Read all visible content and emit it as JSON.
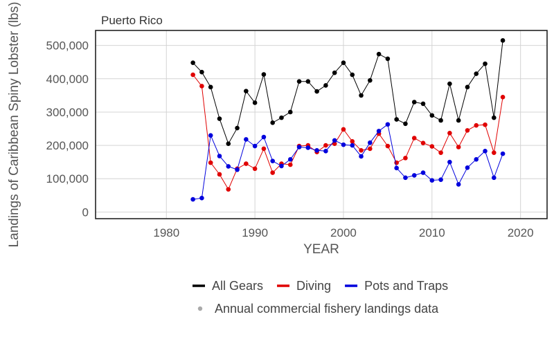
{
  "chart_data": {
    "type": "line",
    "title": "Puerto Rico",
    "xlabel": "YEAR",
    "ylabel": "Landings of Caribbean Spiny Lobster (lbs)",
    "xlim": [
      1972,
      2023
    ],
    "ylim": [
      -20000,
      545000
    ],
    "x_ticks": [
      1980,
      1990,
      2000,
      2010,
      2020
    ],
    "y_ticks": [
      0,
      100000,
      200000,
      300000,
      400000,
      500000
    ],
    "y_tick_labels": [
      "0",
      "100,000",
      "200,000",
      "300,000",
      "400,000",
      "500,000"
    ],
    "grid": true,
    "legend_position": "bottom",
    "x": [
      1983,
      1984,
      1985,
      1986,
      1987,
      1988,
      1989,
      1990,
      1991,
      1992,
      1993,
      1994,
      1995,
      1996,
      1997,
      1998,
      1999,
      2000,
      2001,
      2002,
      2003,
      2004,
      2005,
      2006,
      2007,
      2008,
      2009,
      2010,
      2011,
      2012,
      2013,
      2014,
      2015,
      2016,
      2017,
      2018
    ],
    "series": [
      {
        "name": "All Gears",
        "color": "#000000",
        "values": [
          448000,
          420000,
          375000,
          280000,
          205000,
          252000,
          363000,
          328000,
          413000,
          268000,
          283000,
          300000,
          392000,
          392000,
          362000,
          380000,
          418000,
          448000,
          412000,
          350000,
          395000,
          474000,
          460000,
          278000,
          265000,
          330000,
          325000,
          290000,
          275000,
          385000,
          275000,
          375000,
          415000,
          445000,
          283000,
          515000
        ]
      },
      {
        "name": "Diving",
        "color": "#e00000",
        "values": [
          412000,
          378000,
          148000,
          113000,
          68000,
          130000,
          145000,
          130000,
          190000,
          118000,
          145000,
          142000,
          198000,
          200000,
          180000,
          200000,
          205000,
          248000,
          212000,
          185000,
          190000,
          235000,
          198000,
          148000,
          162000,
          222000,
          207000,
          197000,
          178000,
          237000,
          195000,
          245000,
          260000,
          262000,
          178000,
          345000
        ]
      },
      {
        "name": "Pots and Traps",
        "color": "#0000dd",
        "values": [
          38000,
          42000,
          230000,
          168000,
          137000,
          127000,
          218000,
          198000,
          225000,
          153000,
          138000,
          158000,
          195000,
          193000,
          185000,
          183000,
          215000,
          202000,
          200000,
          167000,
          208000,
          243000,
          263000,
          132000,
          103000,
          110000,
          118000,
          95000,
          97000,
          150000,
          83000,
          133000,
          158000,
          183000,
          103000,
          175000
        ]
      }
    ],
    "legend_note": "Annual commercial fishery landings data",
    "legend_note_color": "#aaaaaa"
  }
}
